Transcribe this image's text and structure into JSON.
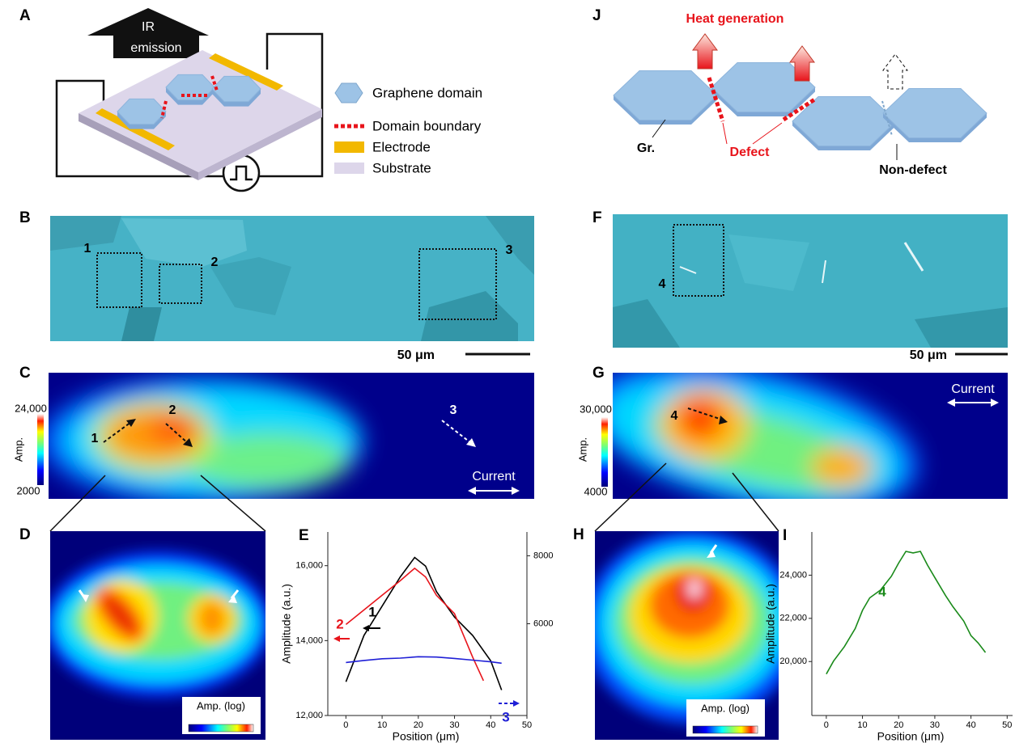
{
  "figure": {
    "panel_A": {
      "label": "A",
      "arrow_text": [
        "IR",
        "emission"
      ],
      "legend": [
        "Graphene domain",
        "Domain boundary",
        "Electrode",
        "Substrate"
      ]
    },
    "panel_J": {
      "label": "J",
      "title": "Heat generation",
      "labels": [
        "Gr.",
        "Defect",
        "Non-defect"
      ]
    },
    "panel_B": {
      "label": "B",
      "regions": [
        "1",
        "2",
        "3"
      ],
      "scale_bar": "50 μm"
    },
    "panel_F": {
      "label": "F",
      "regions": [
        "4"
      ],
      "scale_bar": "50 μm"
    },
    "panel_C": {
      "label": "C",
      "colorbar": {
        "max": "24,000",
        "min": "2000",
        "title": "Amp."
      },
      "regions": [
        "1",
        "2",
        "3"
      ],
      "current": "Current"
    },
    "panel_G": {
      "label": "G",
      "colorbar": {
        "max": "30,000",
        "min": "4000",
        "title": "Amp."
      },
      "regions": [
        "4"
      ],
      "current": "Current"
    },
    "panel_D": {
      "label": "D",
      "colorbar_title": "Amp. (log)"
    },
    "panel_H": {
      "label": "H",
      "colorbar_title": "Amp. (log)"
    }
  },
  "chart_data": [
    {
      "type": "line",
      "panel": "E",
      "ylabel": "Amplitude (a.u.)",
      "xlabel": "Position (μm)",
      "xlim": [
        -5,
        50
      ],
      "xticks": [
        0,
        10,
        20,
        30,
        40,
        50
      ],
      "ylim": [
        12000,
        16900
      ],
      "yticks": [
        {
          "value": 12000,
          "label": "12,000"
        },
        {
          "value": 14000,
          "label": "14,000"
        },
        {
          "value": 16000,
          "label": "16,000"
        }
      ],
      "y2lim": [
        3300,
        8700
      ],
      "y2ticks": [
        6000,
        8000
      ],
      "series": [
        {
          "name": "1",
          "color": "#000000",
          "x": [
            0,
            5,
            10,
            15,
            19,
            22,
            25,
            30,
            35,
            40,
            43
          ],
          "values": [
            12900,
            14140,
            14920,
            15700,
            16220,
            15990,
            15310,
            14630,
            14140,
            13460,
            12680
          ]
        },
        {
          "name": "2",
          "color": "#e8141b",
          "x": [
            0,
            5,
            10,
            15,
            19,
            22,
            25,
            30,
            35,
            38
          ],
          "values": [
            14430,
            14820,
            15210,
            15600,
            15930,
            15700,
            15210,
            14720,
            13560,
            12930
          ]
        },
        {
          "name": "3",
          "color": "#1f1fd6",
          "axis": "y2",
          "x": [
            0,
            5,
            10,
            15,
            20,
            25,
            30,
            35,
            40,
            43
          ],
          "values": [
            4860,
            4920,
            4970,
            4990,
            5030,
            5020,
            4980,
            4930,
            4880,
            4840
          ]
        }
      ]
    },
    {
      "type": "line",
      "panel": "I",
      "ylabel": "Amplitude (a.u.)",
      "xlabel": "Position (μm)",
      "xlim": [
        -4,
        51.5
      ],
      "xticks": [
        0,
        10,
        20,
        30,
        40,
        50
      ],
      "ylim": [
        17500,
        26000
      ],
      "yticks": [
        {
          "value": 20000,
          "label": "20,000"
        },
        {
          "value": 22000,
          "label": "22,000"
        },
        {
          "value": 24000,
          "label": "24,000"
        }
      ],
      "series": [
        {
          "name": "4",
          "color": "#1a8a1a",
          "x": [
            0,
            2,
            5,
            8,
            10,
            12,
            15,
            18,
            20,
            22,
            24,
            26,
            28,
            30,
            33,
            35,
            38,
            40,
            42,
            44
          ],
          "values": [
            19420,
            20020,
            20690,
            21530,
            22370,
            22950,
            23310,
            23950,
            24560,
            25100,
            25030,
            25100,
            24460,
            23890,
            23050,
            22540,
            21870,
            21200,
            20860,
            20420
          ]
        }
      ]
    }
  ]
}
